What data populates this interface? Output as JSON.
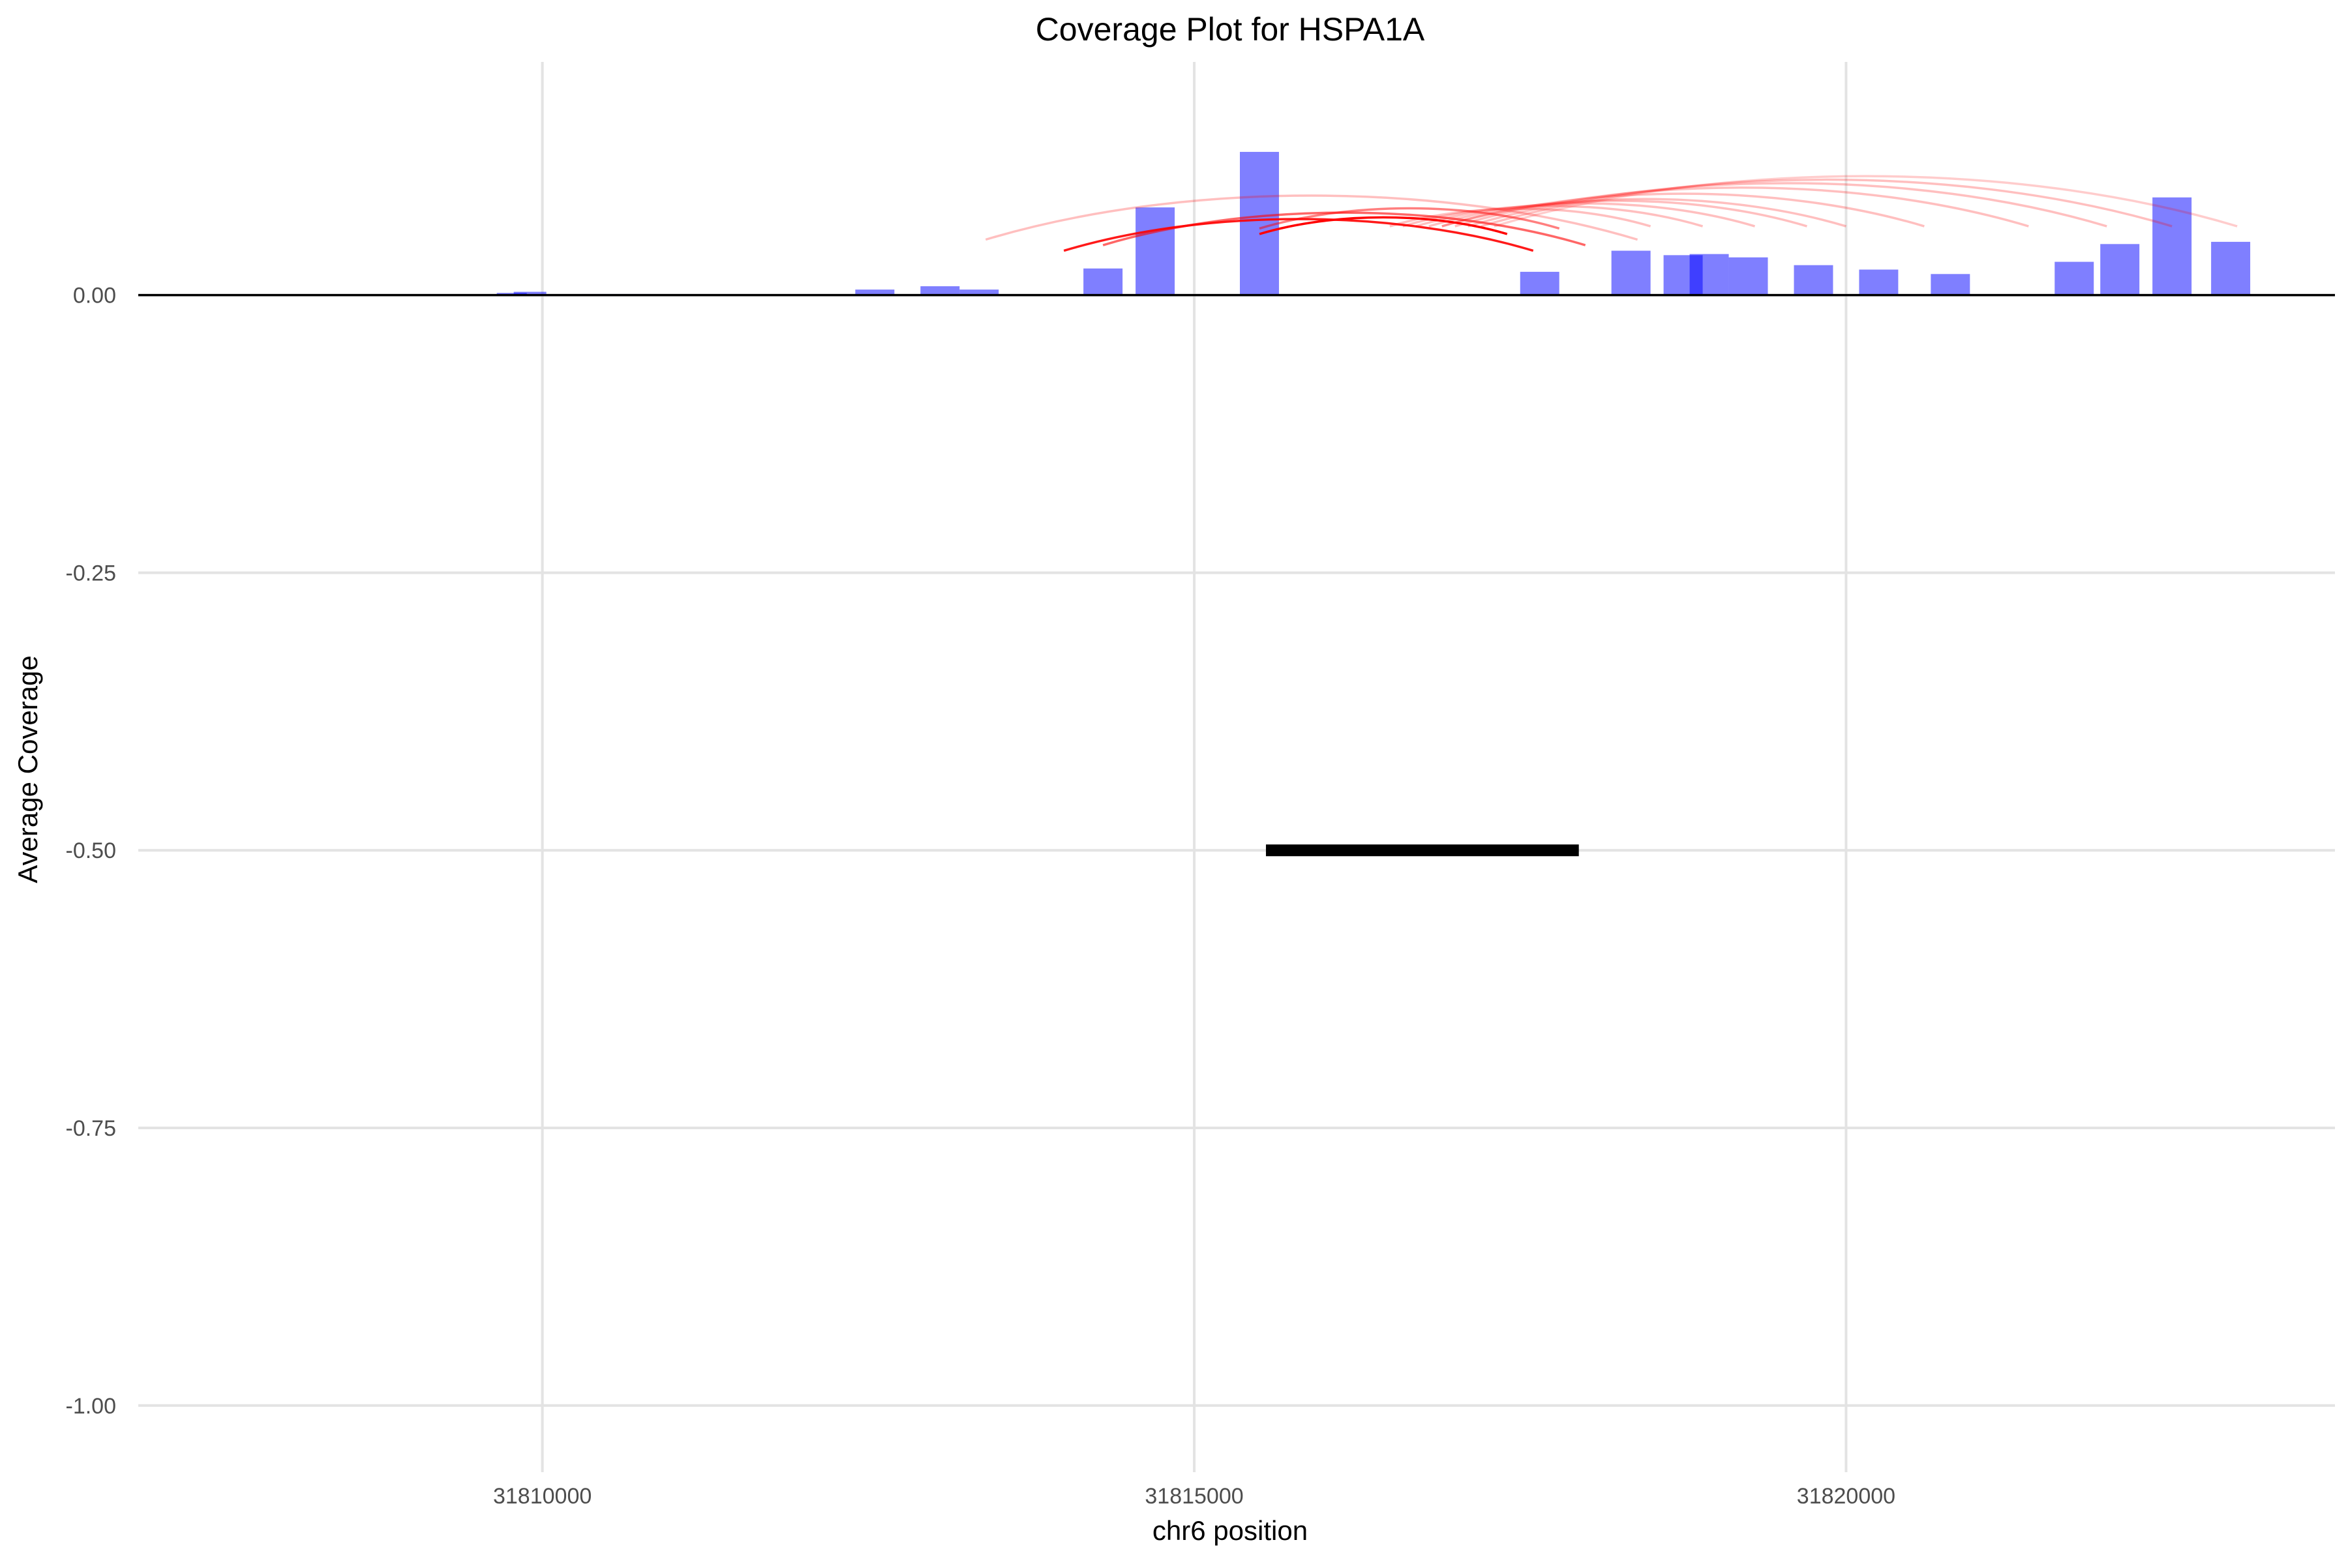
{
  "chart_data": {
    "type": "bar",
    "title": "Coverage Plot for HSPA1A",
    "xlabel": "chr6 position",
    "ylabel": "Average Coverage",
    "xlim": [
      31806900,
      31823750
    ],
    "ylim": [
      -1.06,
      0.21
    ],
    "x_ticks": [
      31810000,
      31815000,
      31820000
    ],
    "x_tick_labels": [
      "31810000",
      "31815000",
      "31820000"
    ],
    "y_ticks": [
      -1.0,
      -0.75,
      -0.5,
      -0.25,
      0.0
    ],
    "y_tick_labels": [
      "-1.00",
      "-0.75",
      "-0.50",
      "-0.25",
      "0.00"
    ],
    "grid": true,
    "colors": {
      "bar": "#0000ff",
      "junction": "#ff0000",
      "gene_model": "#000000",
      "grid": "#e3e3e3",
      "baseline": "#000000"
    },
    "coverage_bars": [
      {
        "start": 31809650,
        "end": 31809880,
        "value": 0.002
      },
      {
        "start": 31809780,
        "end": 31810030,
        "value": 0.003
      },
      {
        "start": 31810300,
        "end": 31810830,
        "value": 0.001
      },
      {
        "start": 31812400,
        "end": 31812700,
        "value": 0.005
      },
      {
        "start": 31812900,
        "end": 31813200,
        "value": 0.008
      },
      {
        "start": 31813200,
        "end": 31813500,
        "value": 0.005
      },
      {
        "start": 31814150,
        "end": 31814450,
        "value": 0.024
      },
      {
        "start": 31814550,
        "end": 31814850,
        "value": 0.079
      },
      {
        "start": 31815350,
        "end": 31815650,
        "value": 0.129
      },
      {
        "start": 31817500,
        "end": 31817800,
        "value": 0.021
      },
      {
        "start": 31818200,
        "end": 31818500,
        "value": 0.04
      },
      {
        "start": 31818600,
        "end": 31818900,
        "value": 0.036
      },
      {
        "start": 31818800,
        "end": 31819100,
        "value": 0.037
      },
      {
        "start": 31819100,
        "end": 31819400,
        "value": 0.034
      },
      {
        "start": 31819600,
        "end": 31819900,
        "value": 0.027
      },
      {
        "start": 31820100,
        "end": 31820400,
        "value": 0.023
      },
      {
        "start": 31820650,
        "end": 31820950,
        "value": 0.019
      },
      {
        "start": 31821600,
        "end": 31821900,
        "value": 0.03
      },
      {
        "start": 31821950,
        "end": 31822250,
        "value": 0.046
      },
      {
        "start": 31822350,
        "end": 31822650,
        "value": 0.088
      },
      {
        "start": 31822800,
        "end": 31823100,
        "value": 0.048
      }
    ],
    "junction_arcs": [
      {
        "start": 31814000,
        "end": 31817600,
        "y": 0.04,
        "opacity": 0.9
      },
      {
        "start": 31814300,
        "end": 31818000,
        "y": 0.045,
        "opacity": 0.6
      },
      {
        "start": 31815500,
        "end": 31817400,
        "y": 0.055,
        "opacity": 1.0
      },
      {
        "start": 31813400,
        "end": 31818400,
        "y": 0.05,
        "opacity": 0.25
      },
      {
        "start": 31815500,
        "end": 31817800,
        "y": 0.06,
        "opacity": 0.5
      },
      {
        "start": 31816500,
        "end": 31818500,
        "y": 0.062,
        "opacity": 0.25
      },
      {
        "start": 31816600,
        "end": 31818900,
        "y": 0.062,
        "opacity": 0.25
      },
      {
        "start": 31816700,
        "end": 31819300,
        "y": 0.062,
        "opacity": 0.25
      },
      {
        "start": 31816800,
        "end": 31819700,
        "y": 0.062,
        "opacity": 0.25
      },
      {
        "start": 31816900,
        "end": 31820000,
        "y": 0.062,
        "opacity": 0.25
      },
      {
        "start": 31816900,
        "end": 31820600,
        "y": 0.062,
        "opacity": 0.25
      },
      {
        "start": 31817000,
        "end": 31821400,
        "y": 0.062,
        "opacity": 0.25
      },
      {
        "start": 31817100,
        "end": 31822000,
        "y": 0.062,
        "opacity": 0.25
      },
      {
        "start": 31817200,
        "end": 31822500,
        "y": 0.062,
        "opacity": 0.25
      },
      {
        "start": 31817300,
        "end": 31823000,
        "y": 0.062,
        "opacity": 0.2
      }
    ],
    "gene_model": {
      "start": 31815550,
      "end": 31817950,
      "y": -0.5
    }
  }
}
